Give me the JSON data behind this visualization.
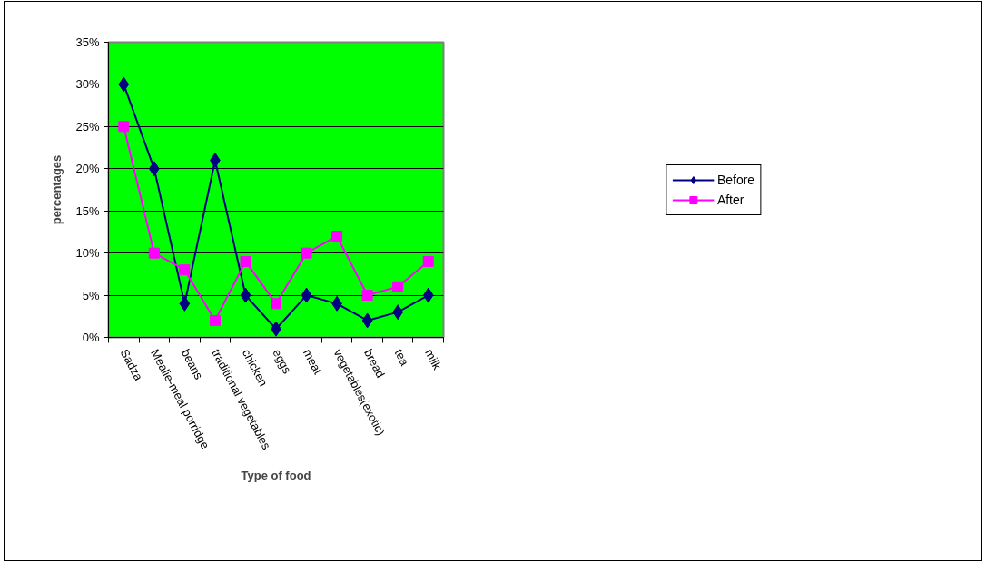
{
  "chart_data": {
    "type": "line",
    "xlabel": "Type of food",
    "ylabel": "percentages",
    "categories": [
      "Sadza",
      "Mealie-meal porridge",
      "beans",
      "traditional vegetables",
      "chicken",
      "eggs",
      "meat",
      "vegetables(exotic)",
      "bread",
      "tea",
      "milk"
    ],
    "series": [
      {
        "name": "Before",
        "color": "#000080",
        "marker": "diamond",
        "values": [
          30,
          20,
          4,
          21,
          5,
          1,
          5,
          4,
          2,
          3,
          5
        ]
      },
      {
        "name": "After",
        "color": "#ff00ff",
        "marker": "square",
        "values": [
          25,
          10,
          8,
          2,
          9,
          4,
          10,
          12,
          5,
          6,
          9
        ]
      }
    ],
    "ylim": [
      0,
      35
    ],
    "yticks": [
      {
        "value": 0,
        "label": "0%"
      },
      {
        "value": 5,
        "label": "5%"
      },
      {
        "value": 10,
        "label": "10%"
      },
      {
        "value": 15,
        "label": "15%"
      },
      {
        "value": 20,
        "label": "20%"
      },
      {
        "value": 25,
        "label": "25%"
      },
      {
        "value": 30,
        "label": "30%"
      },
      {
        "value": 35,
        "label": "35%"
      }
    ],
    "grid": "y",
    "legend": "right",
    "line_style": "solid"
  }
}
